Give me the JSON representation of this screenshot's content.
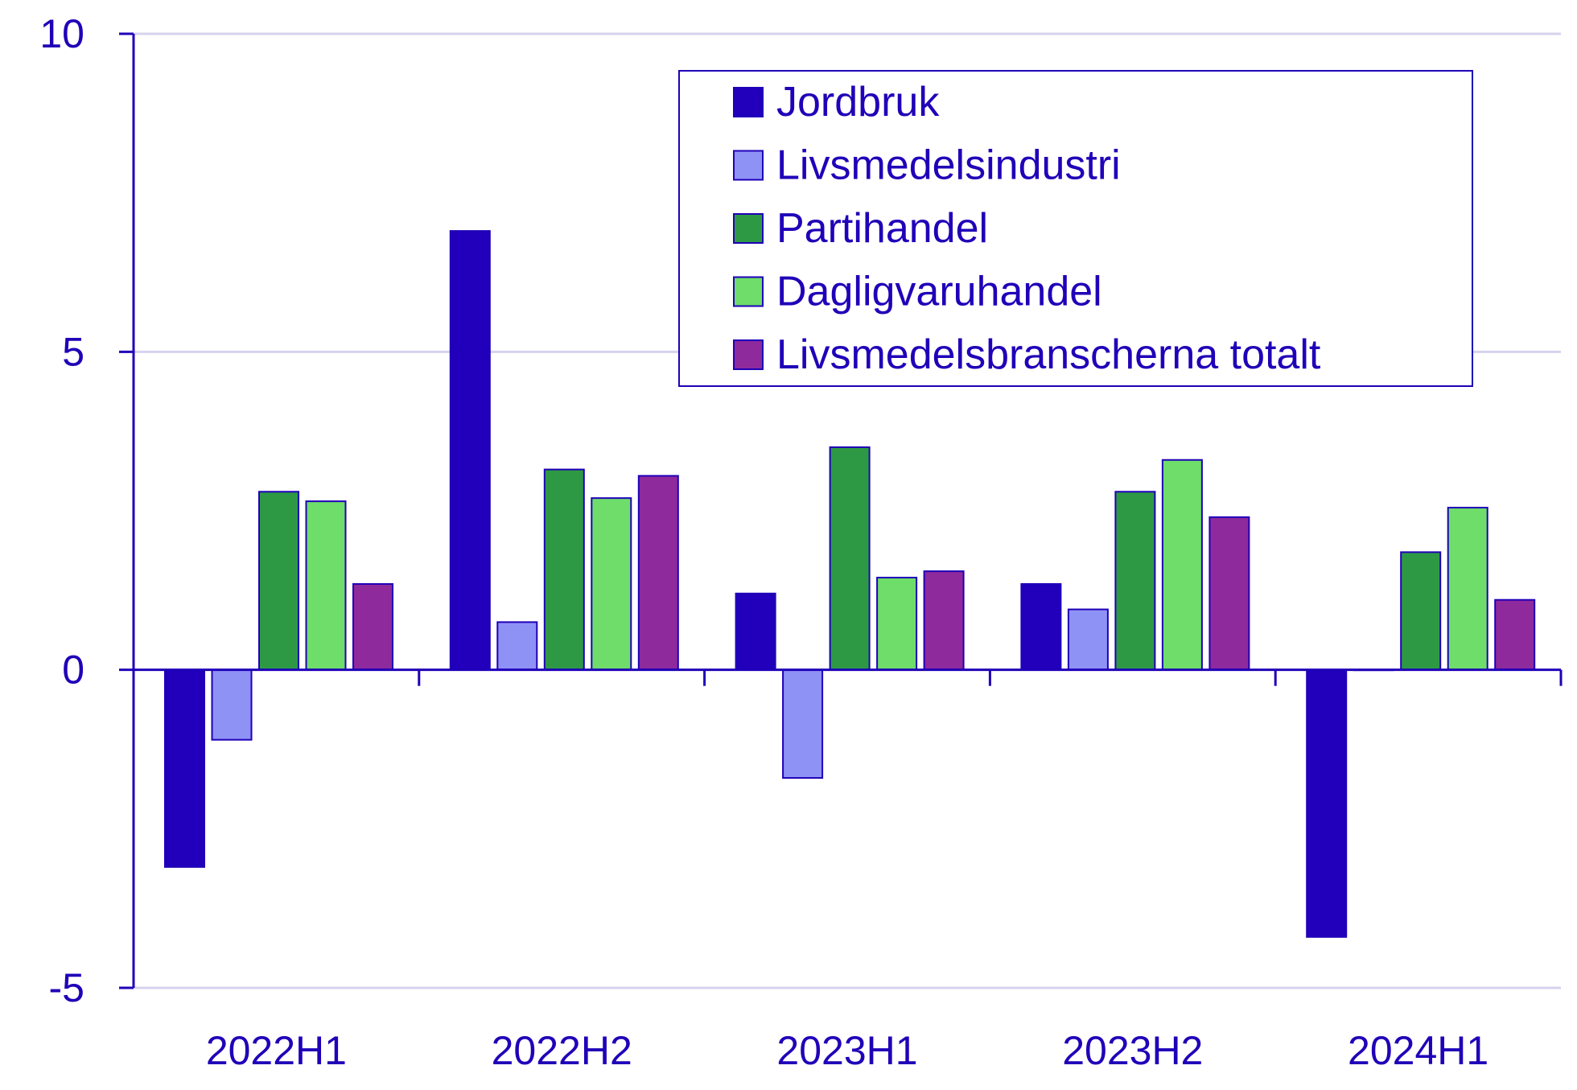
{
  "chart_data": {
    "type": "bar",
    "title": "",
    "xlabel": "",
    "ylabel": "",
    "ylim": [
      -5,
      10
    ],
    "yticks": [
      10,
      5,
      0,
      -5
    ],
    "grid": true,
    "legend_position": "top-right",
    "categories": [
      "2022H1",
      "2022H2",
      "2023H1",
      "2023H2",
      "2024H1"
    ],
    "series": [
      {
        "name": "Jordbruk",
        "color": "#2200bb",
        "values": [
          -3.1,
          6.9,
          1.2,
          1.35,
          -4.2
        ]
      },
      {
        "name": "Livsmedelsindustri",
        "color": "#8f92f5",
        "values": [
          -1.1,
          0.75,
          -1.7,
          0.95,
          0.0
        ]
      },
      {
        "name": "Partihandel",
        "color": "#2e9945",
        "values": [
          2.8,
          3.15,
          3.5,
          2.8,
          1.85
        ]
      },
      {
        "name": "Dagligvaruhandel",
        "color": "#6edd6a",
        "values": [
          2.65,
          2.7,
          1.45,
          3.3,
          2.55
        ]
      },
      {
        "name": "Livsmedelsbranscherna totalt",
        "color": "#8e2a9c",
        "values": [
          1.35,
          3.05,
          1.55,
          2.4,
          1.1
        ]
      }
    ]
  }
}
